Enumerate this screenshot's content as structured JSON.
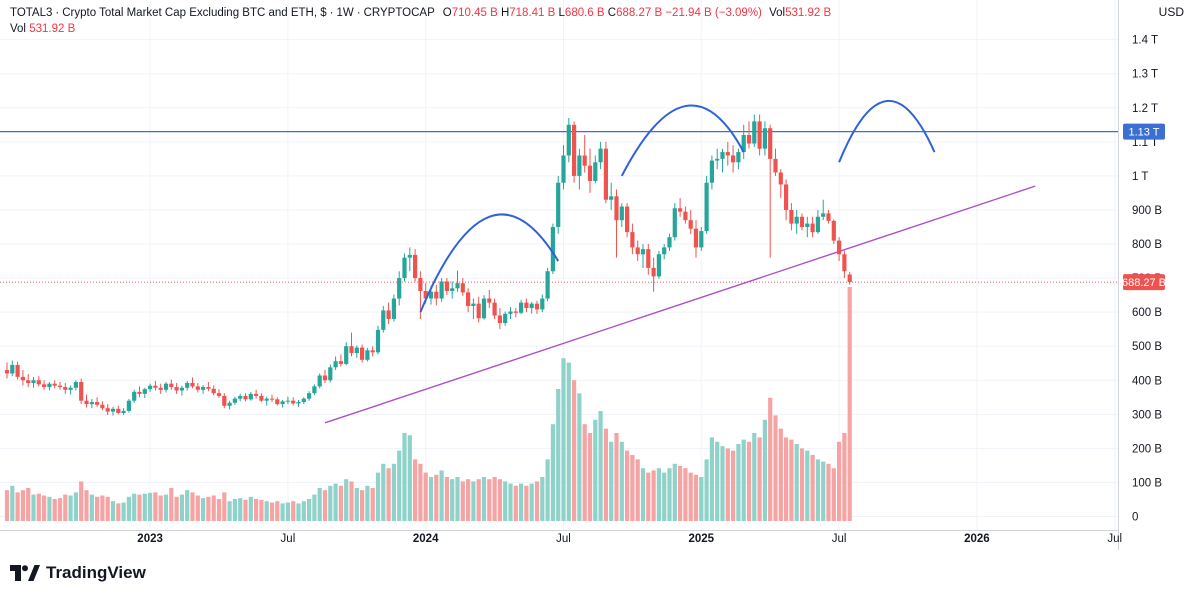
{
  "header": {
    "symbol": "TOTAL3",
    "description": "Crypto Total Market Cap Excluding BTC and ETH, $",
    "interval": "1W",
    "exchange": "CRYPTOCAP",
    "open_label": "O",
    "open": "710.45 B",
    "high_label": "H",
    "high": "718.41 B",
    "low_label": "L",
    "low": "680.6 B",
    "close_label": "C",
    "close": "688.27 B",
    "change": "−21.94 B (−3.09%)",
    "vol_label": "Vol",
    "vol": "531.92 B",
    "vol_row_label": "Vol",
    "vol_row_value": "531.92 B"
  },
  "axis": {
    "currency": "USD"
  },
  "brand": {
    "name": "TradingView"
  },
  "colors": {
    "up": "#26a69a",
    "down": "#ef5350",
    "vol_up": "#8fd2c9",
    "vol_down": "#f5a3a3",
    "support_line": "#b04fc8",
    "resistance_line": "#3b6fd1",
    "arc": "#2f62d9",
    "grid": "#f0f3fa",
    "price_line": "#ef5350"
  },
  "chart_data": {
    "type": "candlestick",
    "symbol": "TOTAL3",
    "interval": "1W",
    "y_unit": "B",
    "ylim": [
      0,
      1450
    ],
    "y_ticks": [
      {
        "v": 0,
        "label": "0"
      },
      {
        "v": 100,
        "label": "100 B"
      },
      {
        "v": 200,
        "label": "200 B"
      },
      {
        "v": 300,
        "label": "300 B"
      },
      {
        "v": 400,
        "label": "400 B"
      },
      {
        "v": 500,
        "label": "500 B"
      },
      {
        "v": 600,
        "label": "600 B"
      },
      {
        "v": 700,
        "label": "700 B"
      },
      {
        "v": 800,
        "label": "800 B"
      },
      {
        "v": 900,
        "label": "900 B"
      },
      {
        "v": 1000,
        "label": "1 T"
      },
      {
        "v": 1100,
        "label": "1.1 T"
      },
      {
        "v": 1200,
        "label": "1.2 T"
      },
      {
        "v": 1300,
        "label": "1.3 T"
      },
      {
        "v": 1400,
        "label": "1.4 T"
      }
    ],
    "x_ticks": [
      {
        "index": 27,
        "label": "2023"
      },
      {
        "index": 53,
        "label": "Jul"
      },
      {
        "index": 79,
        "label": "2024"
      },
      {
        "index": 105,
        "label": "Jul"
      },
      {
        "index": 131,
        "label": "2025"
      },
      {
        "index": 157,
        "label": "Jul"
      },
      {
        "index": 183,
        "label": "2026"
      },
      {
        "index": 209,
        "label": "Jul"
      }
    ],
    "resistance_level": {
      "value": 1130,
      "label": "1.13 T"
    },
    "last_price": {
      "value": 688.27,
      "label": "688.27 B"
    },
    "trendline": {
      "from": {
        "index": 60,
        "value": 275
      },
      "to": {
        "index": 194,
        "value": 970
      }
    },
    "volume_scale": {
      "y_anchor_value": 300,
      "volume_value": 300
    },
    "arcs": [
      {
        "from": {
          "index": 78,
          "value": 600
        },
        "peak": {
          "index": 91,
          "value": 880
        },
        "to": {
          "index": 104,
          "value": 750
        }
      },
      {
        "from": {
          "index": 116,
          "value": 1000
        },
        "peak": {
          "index": 128,
          "value": 1205
        },
        "to": {
          "index": 139,
          "value": 1070
        }
      },
      {
        "from": {
          "index": 157,
          "value": 1040
        },
        "peak": {
          "index": 166,
          "value": 1220
        },
        "to": {
          "index": 175,
          "value": 1070
        }
      }
    ],
    "candles": [
      [
        430,
        452,
        405,
        420,
        70
      ],
      [
        420,
        458,
        412,
        445,
        80
      ],
      [
        445,
        455,
        402,
        410,
        65
      ],
      [
        410,
        430,
        385,
        400,
        70
      ],
      [
        400,
        418,
        380,
        392,
        75
      ],
      [
        392,
        410,
        378,
        400,
        60
      ],
      [
        400,
        412,
        382,
        388,
        62
      ],
      [
        388,
        400,
        372,
        380,
        58
      ],
      [
        380,
        395,
        370,
        390,
        55
      ],
      [
        390,
        400,
        376,
        384,
        50
      ],
      [
        384,
        395,
        372,
        380,
        52
      ],
      [
        380,
        392,
        360,
        372,
        60
      ],
      [
        372,
        385,
        358,
        378,
        58
      ],
      [
        378,
        400,
        370,
        395,
        65
      ],
      [
        395,
        405,
        330,
        340,
        90
      ],
      [
        340,
        358,
        320,
        330,
        70
      ],
      [
        330,
        345,
        318,
        336,
        60
      ],
      [
        336,
        350,
        322,
        328,
        55
      ],
      [
        328,
        338,
        312,
        318,
        58
      ],
      [
        318,
        330,
        298,
        308,
        55
      ],
      [
        308,
        322,
        296,
        316,
        45
      ],
      [
        316,
        325,
        300,
        304,
        40
      ],
      [
        304,
        318,
        298,
        310,
        42
      ],
      [
        310,
        345,
        305,
        340,
        55
      ],
      [
        340,
        372,
        334,
        366,
        62
      ],
      [
        366,
        382,
        350,
        360,
        60
      ],
      [
        360,
        378,
        348,
        374,
        62
      ],
      [
        374,
        390,
        366,
        384,
        64
      ],
      [
        384,
        398,
        370,
        378,
        65
      ],
      [
        378,
        390,
        360,
        372,
        58
      ],
      [
        372,
        395,
        364,
        390,
        60
      ],
      [
        390,
        402,
        372,
        380,
        75
      ],
      [
        380,
        392,
        360,
        370,
        55
      ],
      [
        370,
        384,
        355,
        378,
        60
      ],
      [
        378,
        398,
        370,
        392,
        70
      ],
      [
        392,
        408,
        376,
        382,
        65
      ],
      [
        382,
        392,
        364,
        372,
        58
      ],
      [
        372,
        386,
        360,
        380,
        52
      ],
      [
        380,
        395,
        368,
        375,
        55
      ],
      [
        375,
        385,
        356,
        362,
        58
      ],
      [
        362,
        374,
        348,
        354,
        50
      ],
      [
        354,
        362,
        318,
        325,
        65
      ],
      [
        325,
        340,
        314,
        334,
        45
      ],
      [
        334,
        352,
        328,
        346,
        50
      ],
      [
        346,
        360,
        338,
        354,
        52
      ],
      [
        354,
        362,
        338,
        344,
        48
      ],
      [
        344,
        366,
        340,
        360,
        55
      ],
      [
        360,
        372,
        346,
        354,
        50
      ],
      [
        354,
        362,
        336,
        340,
        48
      ],
      [
        340,
        352,
        326,
        346,
        45
      ],
      [
        346,
        358,
        336,
        344,
        42
      ],
      [
        344,
        350,
        326,
        330,
        45
      ],
      [
        330,
        342,
        320,
        338,
        40
      ],
      [
        338,
        352,
        330,
        340,
        42
      ],
      [
        340,
        350,
        326,
        332,
        45
      ],
      [
        332,
        342,
        322,
        336,
        40
      ],
      [
        336,
        350,
        330,
        346,
        45
      ],
      [
        346,
        368,
        340,
        362,
        50
      ],
      [
        362,
        388,
        356,
        382,
        60
      ],
      [
        382,
        420,
        376,
        414,
        75
      ],
      [
        414,
        430,
        392,
        400,
        70
      ],
      [
        400,
        446,
        394,
        438,
        80
      ],
      [
        438,
        470,
        430,
        456,
        85
      ],
      [
        456,
        476,
        440,
        448,
        80
      ],
      [
        448,
        512,
        444,
        500,
        95
      ],
      [
        500,
        540,
        470,
        480,
        90
      ],
      [
        480,
        502,
        466,
        496,
        75
      ],
      [
        496,
        505,
        452,
        460,
        70
      ],
      [
        460,
        495,
        455,
        488,
        80
      ],
      [
        488,
        500,
        470,
        482,
        75
      ],
      [
        482,
        560,
        476,
        548,
        110
      ],
      [
        548,
        618,
        540,
        605,
        130
      ],
      [
        605,
        628,
        565,
        580,
        120
      ],
      [
        580,
        652,
        572,
        640,
        130
      ],
      [
        640,
        720,
        620,
        700,
        160
      ],
      [
        700,
        772,
        690,
        760,
        200
      ],
      [
        760,
        790,
        720,
        768,
        195
      ],
      [
        768,
        785,
        690,
        700,
        140
      ],
      [
        700,
        720,
        580,
        662,
        130
      ],
      [
        662,
        685,
        625,
        640,
        110
      ],
      [
        640,
        678,
        622,
        660,
        100
      ],
      [
        660,
        680,
        620,
        640,
        105
      ],
      [
        640,
        700,
        630,
        690,
        115
      ],
      [
        690,
        700,
        650,
        662,
        100
      ],
      [
        662,
        690,
        640,
        670,
        95
      ],
      [
        670,
        722,
        660,
        685,
        100
      ],
      [
        685,
        700,
        648,
        658,
        90
      ],
      [
        658,
        670,
        600,
        618,
        95
      ],
      [
        618,
        640,
        580,
        625,
        90
      ],
      [
        625,
        645,
        570,
        582,
        95
      ],
      [
        582,
        650,
        578,
        640,
        100
      ],
      [
        640,
        665,
        612,
        628,
        95
      ],
      [
        628,
        640,
        580,
        590,
        100
      ],
      [
        590,
        612,
        550,
        568,
        95
      ],
      [
        568,
        602,
        560,
        595,
        90
      ],
      [
        595,
        615,
        580,
        602,
        85
      ],
      [
        602,
        612,
        585,
        598,
        80
      ],
      [
        598,
        636,
        594,
        628,
        85
      ],
      [
        628,
        640,
        600,
        612,
        80
      ],
      [
        612,
        630,
        596,
        625,
        85
      ],
      [
        625,
        633,
        595,
        608,
        90
      ],
      [
        608,
        652,
        600,
        640,
        100
      ],
      [
        640,
        730,
        632,
        720,
        140
      ],
      [
        720,
        860,
        712,
        850,
        220
      ],
      [
        850,
        1000,
        830,
        980,
        300
      ],
      [
        980,
        1090,
        960,
        1060,
        370
      ],
      [
        1060,
        1170,
        1040,
        1150,
        360
      ],
      [
        1150,
        1160,
        980,
        1000,
        320
      ],
      [
        1000,
        1080,
        960,
        1060,
        290
      ],
      [
        1060,
        1120,
        1010,
        1030,
        220
      ],
      [
        1030,
        1080,
        950,
        985,
        200
      ],
      [
        985,
        1060,
        978,
        1040,
        230
      ],
      [
        1040,
        1100,
        1020,
        1080,
        250
      ],
      [
        1080,
        1100,
        920,
        930,
        210
      ],
      [
        930,
        980,
        900,
        940,
        180
      ],
      [
        940,
        960,
        760,
        870,
        200
      ],
      [
        870,
        920,
        850,
        910,
        180
      ],
      [
        910,
        920,
        820,
        835,
        160
      ],
      [
        835,
        860,
        770,
        790,
        150
      ],
      [
        790,
        810,
        750,
        770,
        140
      ],
      [
        770,
        800,
        730,
        785,
        120
      ],
      [
        785,
        800,
        710,
        730,
        110
      ],
      [
        730,
        760,
        660,
        705,
        115
      ],
      [
        705,
        780,
        698,
        770,
        120
      ],
      [
        770,
        800,
        755,
        790,
        110
      ],
      [
        790,
        830,
        780,
        820,
        120
      ],
      [
        820,
        920,
        810,
        905,
        130
      ],
      [
        905,
        935,
        880,
        895,
        125
      ],
      [
        895,
        910,
        860,
        870,
        120
      ],
      [
        870,
        900,
        830,
        845,
        110
      ],
      [
        845,
        870,
        760,
        790,
        105
      ],
      [
        790,
        850,
        780,
        838,
        100
      ],
      [
        838,
        1000,
        830,
        980,
        140
      ],
      [
        980,
        1060,
        960,
        1045,
        190
      ],
      [
        1045,
        1080,
        1020,
        1050,
        180
      ],
      [
        1050,
        1080,
        1010,
        1070,
        170
      ],
      [
        1070,
        1100,
        1030,
        1060,
        165
      ],
      [
        1060,
        1090,
        1010,
        1040,
        160
      ],
      [
        1040,
        1080,
        1020,
        1070,
        175
      ],
      [
        1070,
        1150,
        1050,
        1120,
        185
      ],
      [
        1120,
        1160,
        1080,
        1095,
        180
      ],
      [
        1095,
        1180,
        1085,
        1160,
        200
      ],
      [
        1160,
        1180,
        1060,
        1080,
        190
      ],
      [
        1080,
        1160,
        1060,
        1140,
        230
      ],
      [
        1140,
        1150,
        760,
        1050,
        280
      ],
      [
        1050,
        1080,
        1000,
        1010,
        240
      ],
      [
        1010,
        1020,
        935,
        975,
        210
      ],
      [
        975,
        990,
        870,
        900,
        190
      ],
      [
        900,
        920,
        840,
        860,
        185
      ],
      [
        860,
        900,
        830,
        880,
        175
      ],
      [
        880,
        890,
        840,
        850,
        165
      ],
      [
        850,
        880,
        820,
        860,
        160
      ],
      [
        860,
        880,
        820,
        835,
        150
      ],
      [
        835,
        900,
        830,
        880,
        140
      ],
      [
        880,
        930,
        870,
        890,
        135
      ],
      [
        890,
        900,
        860,
        868,
        130
      ],
      [
        868,
        872,
        800,
        810,
        120
      ],
      [
        810,
        820,
        750,
        770,
        180
      ],
      [
        770,
        780,
        700,
        720,
        200
      ],
      [
        710.45,
        718.41,
        680.6,
        688.27,
        531.92
      ]
    ]
  }
}
